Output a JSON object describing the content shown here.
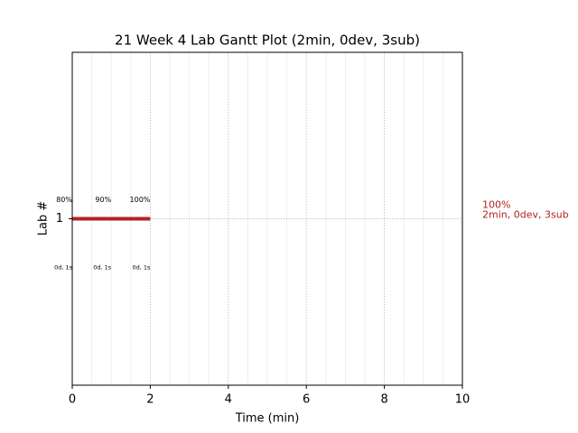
{
  "chart_data": {
    "type": "gantt",
    "title": "21 Week 4 Lab Gantt Plot (2min, 0dev, 3sub)",
    "xlabel": "Time (min)",
    "ylabel": "Lab #",
    "xlim": [
      0,
      10
    ],
    "xticks": [
      0,
      2,
      4,
      6,
      8,
      10
    ],
    "xminorticks": [
      0.5,
      1,
      1.5,
      2.5,
      3,
      3.5,
      4.5,
      5,
      5.5,
      6.5,
      7,
      7.5,
      8.5,
      9,
      9.5
    ],
    "grid": true,
    "tasks": [
      {
        "label": "1",
        "start": 0,
        "end": 2,
        "color": "#b22222",
        "checkpoints": {
          "x": [
            0,
            1,
            2
          ],
          "values": [
            80,
            90,
            100
          ],
          "value_labels": [
            "80%",
            "90%",
            "100%"
          ],
          "notes": [
            "0d, 1s",
            "0d, 1s",
            "0d, 1s"
          ]
        },
        "summary": [
          "100%",
          "2min, 0dev, 3sub"
        ]
      }
    ]
  }
}
